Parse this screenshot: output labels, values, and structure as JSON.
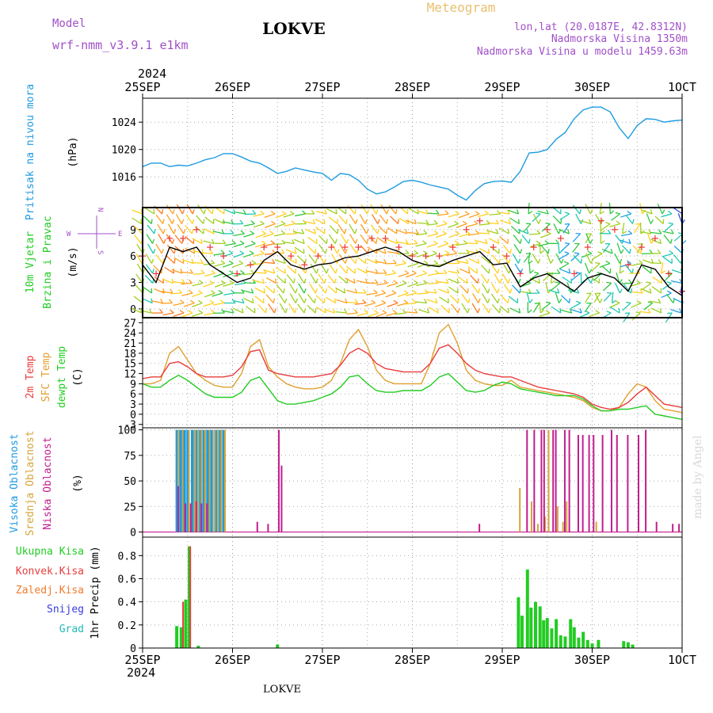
{
  "header": {
    "model_label": "Model",
    "model_name": "wrf-nmm_v3.9.1  e1km",
    "station": "LOKVE",
    "meteogram": "Meteogram",
    "lonlat": "lon,lat (20.0187E, 42.8312N)",
    "altitude": "Nadmorska Visina 1350m",
    "altitude_model": "Nadmorska Visina u modelu 1459.63m",
    "footer_station": "LOKVE",
    "credit": "made by Angel"
  },
  "time_axis": {
    "year": "2024",
    "days": [
      "25SEP",
      "26SEP",
      "27SEP",
      "28SEP",
      "29SEP",
      "30SEP",
      "1OCT"
    ]
  },
  "labels": {
    "pressure": [
      "Pritisak na nivou mora"
    ],
    "pressure_unit": "(hPa)",
    "wind": [
      "10m Vjetar",
      "Brzina i Pravac"
    ],
    "wind_unit": "(m/s)",
    "compass": {
      "w": "W",
      "e": "E",
      "n": "N",
      "s": "S"
    },
    "temp": [
      "2m Temp",
      "SFC Temp",
      "dewpt Temp"
    ],
    "temp_unit": "(C)",
    "cloud": [
      "Visoka Oblacnost",
      "Srednja Oblacnost",
      "Niska Oblacnost"
    ],
    "cloud_unit": "(%)",
    "precip": [
      "Ukupna Kisa",
      "Konvek.Kisa",
      "Zaledj.Kisa",
      "Snijeg",
      "Grad"
    ],
    "precip_unit": "1hr Precip (mm)"
  },
  "colors": {
    "pressure": "#1e9be0",
    "wind_speed": "#000000",
    "wind_gust": "#ee3333",
    "t2m": "#e83c3c",
    "tsfc": "#e0a030",
    "dewpt": "#22cc22",
    "cloud_high": "#1e9be0",
    "cloud_mid": "#d4a53a",
    "cloud_low": "#c21e8e",
    "precip_total": "#22cc22",
    "precip_conv": "#e83c3c",
    "precip_frz": "#ef7a2a",
    "precip_snow": "#3a3ae0",
    "precip_hail": "#22bbbb"
  },
  "chart_data": [
    {
      "type": "line",
      "name": "pressure",
      "ylabel": "(hPa)",
      "yticks": [
        1016,
        1020,
        1024
      ],
      "ylim": [
        1011.5,
        1027.5
      ],
      "x": [
        0,
        0.1,
        0.2,
        0.3,
        0.4,
        0.5,
        0.6,
        0.7,
        0.8,
        0.9,
        1.0,
        1.1,
        1.2,
        1.3,
        1.4,
        1.5,
        1.6,
        1.7,
        1.8,
        1.9,
        2.0,
        2.1,
        2.2,
        2.3,
        2.4,
        2.5,
        2.6,
        2.7,
        2.8,
        2.9,
        3.0,
        3.1,
        3.2,
        3.3,
        3.4,
        3.5,
        3.6,
        3.7,
        3.8,
        3.9,
        4.0,
        4.1,
        4.2,
        4.3,
        4.4,
        4.5,
        4.6,
        4.7,
        4.8,
        4.9,
        5.0,
        5.1,
        5.2,
        5.3,
        5.4,
        5.5,
        5.6,
        5.7,
        5.8,
        5.9,
        6.0
      ],
      "values": [
        1017.5,
        1018,
        1018,
        1017.5,
        1017.7,
        1017.6,
        1018,
        1018.5,
        1018.8,
        1019.4,
        1019.4,
        1018.9,
        1018.3,
        1018,
        1017.3,
        1016.5,
        1016.8,
        1017.3,
        1017,
        1016.7,
        1016.5,
        1015.5,
        1016.5,
        1016.3,
        1015.5,
        1014.2,
        1013.5,
        1013.8,
        1014.5,
        1015.3,
        1015.5,
        1015.2,
        1014.8,
        1014.5,
        1014.2,
        1013.3,
        1012.6,
        1014,
        1015,
        1015.3,
        1015.4,
        1015.2,
        1016.8,
        1019.5,
        1019.6,
        1020,
        1021.5,
        1022.5,
        1024.5,
        1025.8,
        1026.2,
        1026.2,
        1025.5,
        1023.2,
        1021.6,
        1023.5,
        1024.5,
        1024.4,
        1024,
        1024.2,
        1024.3
      ]
    },
    {
      "type": "line",
      "name": "wind",
      "ylabel": "(m/s)",
      "yticks": [
        0,
        3,
        6,
        9
      ],
      "ylim": [
        -1,
        11.5
      ],
      "x": [
        0,
        0.15,
        0.3,
        0.45,
        0.6,
        0.75,
        0.9,
        1.05,
        1.2,
        1.35,
        1.5,
        1.65,
        1.8,
        1.95,
        2.1,
        2.25,
        2.4,
        2.55,
        2.7,
        2.85,
        3.0,
        3.15,
        3.3,
        3.45,
        3.6,
        3.75,
        3.9,
        4.05,
        4.2,
        4.35,
        4.5,
        4.65,
        4.8,
        4.95,
        5.1,
        5.25,
        5.4,
        5.55,
        5.7,
        5.85,
        6.0
      ],
      "series": [
        {
          "values": [
            5,
            3,
            7,
            6.5,
            7,
            5,
            4,
            3,
            3.5,
            5.5,
            6.5,
            5,
            4.5,
            5,
            5.2,
            5.8,
            6,
            6.5,
            7,
            6.5,
            5.5,
            5,
            4.8,
            5.5,
            6,
            6.5,
            5,
            5.2,
            2.5,
            3.5,
            4,
            3,
            2,
            3.5,
            4,
            3.5,
            2,
            5,
            4.5,
            2.5,
            1.5
          ]
        },
        {
          "values": [
            6,
            4,
            8,
            8,
            9,
            7,
            6,
            4,
            5,
            7,
            7,
            6,
            5,
            6,
            7,
            7,
            7,
            8,
            8,
            7,
            6,
            6,
            6,
            7,
            9,
            10,
            7,
            6,
            4,
            7,
            9,
            8,
            4,
            7,
            10,
            9,
            5,
            7,
            8,
            4,
            2
          ]
        }
      ]
    },
    {
      "type": "line",
      "name": "temperature",
      "ylabel": "(C)",
      "yticks": [
        -3,
        0,
        3,
        6,
        9,
        12,
        15,
        18,
        21,
        24,
        27
      ],
      "ylim": [
        -4,
        28.5
      ],
      "x": [
        0,
        0.1,
        0.2,
        0.3,
        0.4,
        0.5,
        0.6,
        0.7,
        0.8,
        0.9,
        1.0,
        1.1,
        1.2,
        1.3,
        1.4,
        1.5,
        1.6,
        1.7,
        1.8,
        1.9,
        2.0,
        2.1,
        2.2,
        2.3,
        2.4,
        2.5,
        2.6,
        2.7,
        2.8,
        2.9,
        3.0,
        3.1,
        3.2,
        3.3,
        3.4,
        3.5,
        3.6,
        3.7,
        3.8,
        3.9,
        4.0,
        4.1,
        4.2,
        4.3,
        4.4,
        4.5,
        4.6,
        4.7,
        4.8,
        4.9,
        5.0,
        5.1,
        5.2,
        5.3,
        5.4,
        5.5,
        5.6,
        5.7,
        5.8,
        5.9,
        6.0
      ],
      "series": [
        {
          "values": [
            10.5,
            11,
            11,
            15,
            15.5,
            14,
            12,
            11,
            11,
            11,
            11.5,
            14,
            18.5,
            19,
            13,
            12,
            11.5,
            11,
            11,
            11,
            11.5,
            12,
            14.5,
            18,
            19.5,
            18,
            15,
            13.5,
            13,
            12.5,
            12.5,
            12.5,
            15,
            19.5,
            20.5,
            18,
            15,
            13,
            12,
            11.5,
            11,
            11,
            10,
            9,
            8,
            7.5,
            7,
            6.5,
            6,
            5,
            3,
            2,
            1.5,
            2,
            3.5,
            6,
            8,
            5.5,
            3,
            2.5,
            2
          ]
        },
        {
          "values": [
            9,
            9,
            10,
            18,
            20,
            16,
            12,
            10,
            8.5,
            8,
            8,
            12,
            20,
            22,
            14,
            11,
            9,
            8,
            7.5,
            7.5,
            8,
            10,
            15,
            22,
            25,
            20,
            13,
            10,
            9,
            9,
            9,
            9,
            15,
            24,
            26.5,
            21,
            13,
            10,
            9,
            8.5,
            8.5,
            10,
            8,
            7.5,
            7,
            6.5,
            6,
            5.5,
            5,
            4,
            2,
            1,
            1,
            2,
            6,
            9,
            8,
            4,
            1.5,
            1,
            0.5
          ]
        },
        {
          "values": [
            9,
            8,
            8,
            10,
            11.5,
            10,
            8,
            6,
            5,
            5,
            5,
            6.5,
            10,
            11,
            7.5,
            4,
            3,
            3,
            3.5,
            4,
            5,
            6,
            8,
            11,
            11.5,
            9,
            7,
            6.5,
            6.5,
            7,
            7,
            7,
            8.5,
            11,
            12,
            9.5,
            7,
            6.5,
            7,
            8.5,
            9.5,
            9,
            7.5,
            7,
            6.5,
            6,
            5.5,
            5.5,
            5.5,
            4.5,
            2.5,
            1,
            1,
            1.5,
            1.5,
            2,
            2.5,
            0,
            -0.5,
            -1,
            -1.5
          ]
        }
      ]
    },
    {
      "type": "bar",
      "name": "cloud",
      "ylabel": "(%)",
      "yticks": [
        0,
        25,
        50,
        75,
        100
      ],
      "ylim": [
        -5,
        102
      ],
      "series": [
        {
          "name": "Visoka Oblacnost",
          "x": [
            0.38,
            0.42,
            0.46,
            0.5,
            0.55,
            0.6,
            0.64,
            0.68,
            0.72,
            0.76,
            0.82,
            0.86,
            0.9
          ],
          "values": [
            100,
            100,
            100,
            100,
            100,
            100,
            100,
            100,
            100,
            100,
            100,
            100,
            100
          ]
        },
        {
          "name": "Srednja Oblacnost",
          "x": [
            0.4,
            0.45,
            0.52,
            0.58,
            0.62,
            0.66,
            0.7,
            0.75,
            0.8,
            0.84,
            0.88,
            0.92,
            4.2,
            4.33,
            4.4,
            4.48,
            4.52,
            4.62,
            4.68,
            4.72,
            5.05
          ],
          "values": [
            100,
            100,
            100,
            100,
            100,
            100,
            100,
            100,
            100,
            100,
            100,
            100,
            43,
            30,
            8,
            15,
            100,
            25,
            10,
            30,
            10
          ]
        },
        {
          "name": "Niska Oblacnost",
          "x": [
            0.4,
            0.48,
            0.54,
            0.6,
            0.66,
            0.72,
            1.28,
            1.4,
            1.52,
            1.55,
            3.75,
            4.28,
            4.36,
            4.44,
            4.47,
            4.57,
            4.6,
            4.7,
            4.75,
            4.85,
            4.9,
            4.97,
            5.02,
            5.12,
            5.22,
            5.28,
            5.4,
            5.52,
            5.6,
            5.72,
            5.9,
            5.97
          ],
          "values": [
            45,
            28,
            28,
            30,
            28,
            28,
            10,
            8,
            100,
            65,
            8,
            100,
            100,
            100,
            100,
            100,
            100,
            100,
            100,
            95,
            95,
            95,
            95,
            95,
            100,
            95,
            95,
            95,
            100,
            10,
            8,
            8
          ]
        }
      ]
    },
    {
      "type": "bar",
      "name": "precip",
      "ylabel": "1hr Precip (mm)",
      "yticks": [
        0,
        0.2,
        0.4,
        0.6,
        0.8
      ],
      "ylim": [
        0,
        0.96
      ],
      "series": [
        {
          "name": "Ukupna Kisa",
          "x": [
            0.38,
            0.43,
            0.48,
            0.52,
            0.62,
            1.5,
            4.18,
            4.22,
            4.28,
            4.32,
            4.37,
            4.42,
            4.46,
            4.5,
            4.55,
            4.6,
            4.65,
            4.7,
            4.76,
            4.8,
            4.85,
            4.9,
            4.95,
            5.0,
            5.07,
            5.35,
            5.4,
            5.45
          ],
          "values": [
            0.19,
            0.18,
            0.42,
            0.88,
            0.02,
            0.03,
            0.44,
            0.28,
            0.68,
            0.35,
            0.4,
            0.36,
            0.24,
            0.26,
            0.17,
            0.25,
            0.11,
            0.1,
            0.25,
            0.18,
            0.09,
            0.14,
            0.07,
            0.04,
            0.07,
            0.06,
            0.05,
            0.03
          ]
        },
        {
          "name": "Konvek.Kisa",
          "x": [
            0.45,
            0.53
          ],
          "values": [
            0.4,
            0.88
          ]
        }
      ]
    }
  ]
}
